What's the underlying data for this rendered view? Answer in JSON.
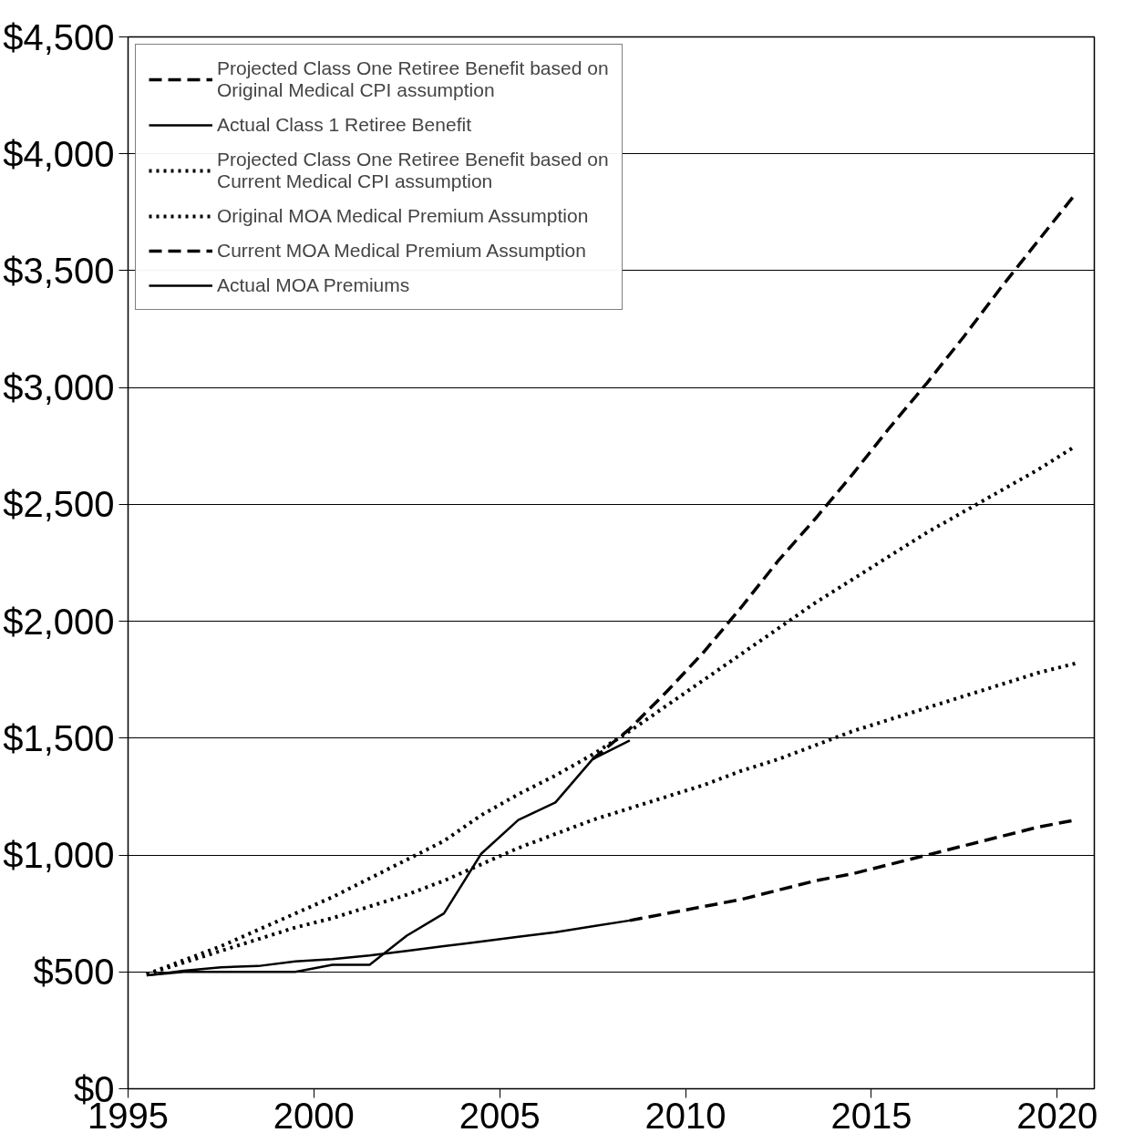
{
  "chart_data": {
    "type": "line",
    "x": [
      1995.5,
      1996.5,
      1997.5,
      1998.5,
      1999.5,
      2000.5,
      2001.5,
      2002.5,
      2003.5,
      2004.5,
      2005.5,
      2006.5,
      2007.5,
      2008.5,
      2009.5,
      2010.5,
      2011.5,
      2012.5,
      2013.5,
      2014.5,
      2015.5,
      2016.5,
      2017.5,
      2018.5,
      2019.5,
      2020.5
    ],
    "xlim": [
      1995,
      2021
    ],
    "xticks": [
      1995,
      2000,
      2005,
      2010,
      2015,
      2020
    ],
    "ylim": [
      0,
      4500
    ],
    "yticks": [
      {
        "value": 0,
        "label": "$0"
      },
      {
        "value": 500,
        "label": "$500"
      },
      {
        "value": 1000,
        "label": "$1,000"
      },
      {
        "value": 1500,
        "label": "$1,500"
      },
      {
        "value": 2000,
        "label": "$2,000"
      },
      {
        "value": 2500,
        "label": "$2,500"
      },
      {
        "value": 3000,
        "label": "$3,000"
      },
      {
        "value": 3500,
        "label": "$3,500"
      },
      {
        "value": 4000,
        "label": "$4,000"
      },
      {
        "value": 4500,
        "label": "$4,500"
      }
    ],
    "grid": "y",
    "legend": "top left",
    "series": [
      {
        "name": "Projected Class One Retiree Benefit based on\nOriginal Medical CPI assumption",
        "color": "#000000",
        "line_style": "dashed",
        "x": [
          2007.5,
          2008.5,
          2009.5,
          2010.5,
          2011.5,
          2012.5,
          2013.5,
          2014.5,
          2015.5,
          2016.5,
          2017.5,
          2018.5,
          2019.5,
          2020.5
        ],
        "values": [
          1410,
          1540,
          1700,
          1870,
          2060,
          2260,
          2440,
          2630,
          2830,
          3020,
          3220,
          3430,
          3630,
          3830
        ]
      },
      {
        "name": "Actual Class 1 Retiree Benefit",
        "color": "#000000",
        "line_style": "solid",
        "x": [
          1995.5,
          1996.5,
          1997.5,
          1998.5,
          1999.5,
          2000.5,
          2001.5,
          2002.5,
          2003.5,
          2004.5,
          2005.5,
          2006.5,
          2007.5,
          2008.5
        ],
        "values": [
          485,
          500,
          500,
          500,
          500,
          530,
          530,
          655,
          750,
          1005,
          1150,
          1225,
          1410,
          1490
        ]
      },
      {
        "name": "Projected Class One Retiree Benefit based on\nCurrent Medical CPI assumption",
        "color": "#000000",
        "line_style": "dotted",
        "values": [
          490,
          550,
          610,
          680,
          750,
          820,
          900,
          980,
          1060,
          1170,
          1260,
          1340,
          1430,
          1530,
          1640,
          1750,
          1860,
          1970,
          2080,
          2180,
          2280,
          2380,
          2470,
          2560,
          2650,
          2750
        ]
      },
      {
        "name": "Original MOA Medical Premium Assumption",
        "color": "#000000",
        "line_style": "dotted",
        "values": [
          490,
          540,
          590,
          640,
          690,
          730,
          780,
          830,
          890,
          960,
          1030,
          1090,
          1150,
          1200,
          1250,
          1300,
          1360,
          1410,
          1470,
          1530,
          1580,
          1630,
          1680,
          1730,
          1780,
          1820
        ]
      },
      {
        "name": "Current MOA Medical Premium Assumption",
        "color": "#000000",
        "line_style": "dashed",
        "x": [
          2008.5,
          2009.5,
          2010.5,
          2011.5,
          2012.5,
          2013.5,
          2014.5,
          2015.5,
          2016.5,
          2017.5,
          2018.5,
          2019.5,
          2020.5
        ],
        "values": [
          720,
          750,
          780,
          810,
          850,
          890,
          920,
          960,
          1000,
          1040,
          1080,
          1120,
          1150
        ]
      },
      {
        "name": "Actual MOA Premiums",
        "color": "#000000",
        "line_style": "solid",
        "x": [
          1995.5,
          1996.5,
          1997.5,
          1998.5,
          1999.5,
          2000.5,
          2001.5,
          2002.5,
          2003.5,
          2004.5,
          2005.5,
          2006.5,
          2007.5,
          2008.5
        ],
        "values": [
          485,
          505,
          520,
          525,
          545,
          555,
          570,
          590,
          610,
          630,
          650,
          670,
          695,
          720
        ]
      }
    ]
  }
}
